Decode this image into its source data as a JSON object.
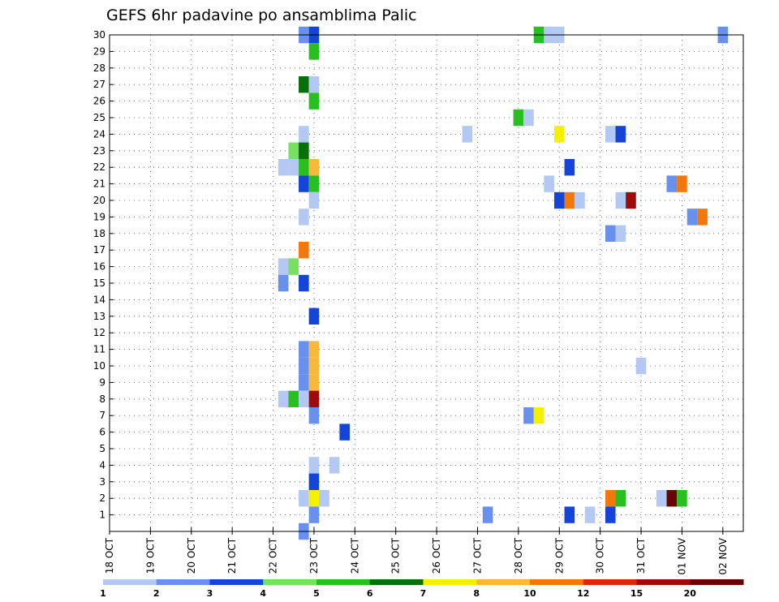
{
  "chart_data": {
    "type": "heatmap",
    "title": "GEFS 6hr padavine po ansamblima Palic",
    "xlabel": "",
    "ylabel": "",
    "x_ticks": [
      "18 OCT",
      "19 OCT",
      "20 OCT",
      "21 OCT",
      "22 OCT",
      "23 OCT",
      "24 OCT",
      "25 OCT",
      "26 OCT",
      "27 OCT",
      "28 OCT",
      "29 OCT",
      "30 OCT",
      "31 OCT",
      "01 NOV",
      "02 NOV"
    ],
    "y_ticks": [
      "1",
      "2",
      "3",
      "4",
      "5",
      "6",
      "7",
      "8",
      "9",
      "10",
      "11",
      "12",
      "13",
      "14",
      "15",
      "16",
      "17",
      "18",
      "19",
      "20",
      "21",
      "22",
      "23",
      "24",
      "25",
      "26",
      "27",
      "28",
      "29",
      "30"
    ],
    "xlim": [
      0,
      61
    ],
    "ylim": [
      0,
      30
    ],
    "grid": true,
    "colorbar": {
      "levels": [
        "1",
        "2",
        "3",
        "4",
        "5",
        "6",
        "7",
        "8",
        "10",
        "12",
        "15",
        "20"
      ],
      "colors": [
        "#b4c8f4",
        "#6890ee",
        "#1444d8",
        "#78e060",
        "#28c020",
        "#0a6e0a",
        "#f4f000",
        "#f8b83c",
        "#f0780c",
        "#e02414",
        "#a00a0a",
        "#680404"
      ]
    },
    "cells": [
      {
        "t": 19,
        "m": 30,
        "c": 1
      },
      {
        "t": 20,
        "m": 30,
        "c": 2
      },
      {
        "t": 42,
        "m": 30,
        "c": 4
      },
      {
        "t": 43,
        "m": 30,
        "c": 0
      },
      {
        "t": 44,
        "m": 30,
        "c": 0
      },
      {
        "t": 60,
        "m": 30,
        "c": 1
      },
      {
        "t": 20,
        "m": 29,
        "c": 4
      },
      {
        "t": 19,
        "m": 27,
        "c": 5
      },
      {
        "t": 20,
        "m": 27,
        "c": 0
      },
      {
        "t": 20,
        "m": 26,
        "c": 4
      },
      {
        "t": 40,
        "m": 25,
        "c": 4
      },
      {
        "t": 41,
        "m": 25,
        "c": 0
      },
      {
        "t": 19,
        "m": 24,
        "c": 0
      },
      {
        "t": 35,
        "m": 24,
        "c": 0
      },
      {
        "t": 44,
        "m": 24,
        "c": 6
      },
      {
        "t": 49,
        "m": 24,
        "c": 0
      },
      {
        "t": 50,
        "m": 24,
        "c": 2
      },
      {
        "t": 18,
        "m": 23,
        "c": 3
      },
      {
        "t": 19,
        "m": 23,
        "c": 5
      },
      {
        "t": 17,
        "m": 22,
        "c": 0
      },
      {
        "t": 18,
        "m": 22,
        "c": 0
      },
      {
        "t": 19,
        "m": 22,
        "c": 4
      },
      {
        "t": 20,
        "m": 22,
        "c": 7
      },
      {
        "t": 45,
        "m": 22,
        "c": 2
      },
      {
        "t": 19,
        "m": 21,
        "c": 2
      },
      {
        "t": 20,
        "m": 21,
        "c": 4
      },
      {
        "t": 43,
        "m": 21,
        "c": 0
      },
      {
        "t": 55,
        "m": 21,
        "c": 1
      },
      {
        "t": 56,
        "m": 21,
        "c": 8
      },
      {
        "t": 20,
        "m": 20,
        "c": 0
      },
      {
        "t": 44,
        "m": 20,
        "c": 2
      },
      {
        "t": 45,
        "m": 20,
        "c": 8
      },
      {
        "t": 46,
        "m": 20,
        "c": 0
      },
      {
        "t": 50,
        "m": 20,
        "c": 0
      },
      {
        "t": 51,
        "m": 20,
        "c": 10
      },
      {
        "t": 19,
        "m": 19,
        "c": 0
      },
      {
        "t": 57,
        "m": 19,
        "c": 1
      },
      {
        "t": 58,
        "m": 19,
        "c": 8
      },
      {
        "t": 49,
        "m": 18,
        "c": 1
      },
      {
        "t": 50,
        "m": 18,
        "c": 0
      },
      {
        "t": 19,
        "m": 17,
        "c": 8
      },
      {
        "t": 17,
        "m": 16,
        "c": 0
      },
      {
        "t": 18,
        "m": 16,
        "c": 3
      },
      {
        "t": 17,
        "m": 15,
        "c": 1
      },
      {
        "t": 19,
        "m": 15,
        "c": 2
      },
      {
        "t": 20,
        "m": 13,
        "c": 2
      },
      {
        "t": 19,
        "m": 11,
        "c": 1
      },
      {
        "t": 20,
        "m": 11,
        "c": 7
      },
      {
        "t": 19,
        "m": 10,
        "c": 1
      },
      {
        "t": 20,
        "m": 10,
        "c": 7
      },
      {
        "t": 52,
        "m": 10,
        "c": 0
      },
      {
        "t": 19,
        "m": 9,
        "c": 1
      },
      {
        "t": 20,
        "m": 9,
        "c": 7
      },
      {
        "t": 17,
        "m": 8,
        "c": 0
      },
      {
        "t": 18,
        "m": 8,
        "c": 4
      },
      {
        "t": 19,
        "m": 8,
        "c": 0
      },
      {
        "t": 20,
        "m": 8,
        "c": 10
      },
      {
        "t": 20,
        "m": 7,
        "c": 1
      },
      {
        "t": 41,
        "m": 7,
        "c": 1
      },
      {
        "t": 42,
        "m": 7,
        "c": 6
      },
      {
        "t": 23,
        "m": 6,
        "c": 2
      },
      {
        "t": 20,
        "m": 4,
        "c": 0
      },
      {
        "t": 22,
        "m": 4,
        "c": 0
      },
      {
        "t": 20,
        "m": 3,
        "c": 2
      },
      {
        "t": 19,
        "m": 2,
        "c": 0
      },
      {
        "t": 20,
        "m": 2,
        "c": 6
      },
      {
        "t": 21,
        "m": 2,
        "c": 0
      },
      {
        "t": 49,
        "m": 2,
        "c": 8
      },
      {
        "t": 50,
        "m": 2,
        "c": 4
      },
      {
        "t": 54,
        "m": 2,
        "c": 0
      },
      {
        "t": 55,
        "m": 2,
        "c": 11
      },
      {
        "t": 56,
        "m": 2,
        "c": 4
      },
      {
        "t": 20,
        "m": 1,
        "c": 1
      },
      {
        "t": 37,
        "m": 1,
        "c": 1
      },
      {
        "t": 45,
        "m": 1,
        "c": 2
      },
      {
        "t": 47,
        "m": 1,
        "c": 0
      },
      {
        "t": 49,
        "m": 1,
        "c": 2
      },
      {
        "t": 19,
        "m": 0,
        "c": 1
      }
    ]
  }
}
